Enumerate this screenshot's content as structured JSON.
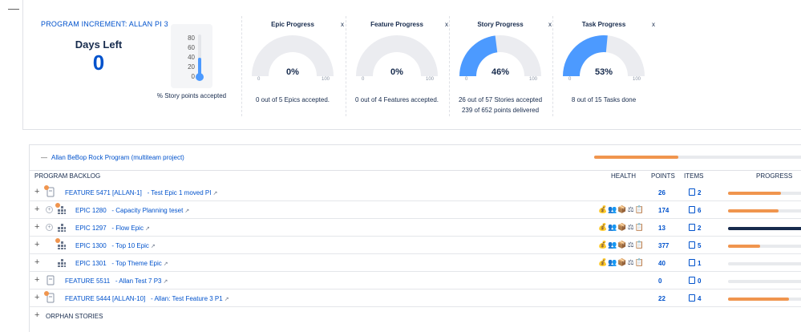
{
  "top": {
    "collapse_symbol": "—",
    "pi_title": "PROGRAM INCREMENT: ALLAN PI 3",
    "days_left_label": "Days Left",
    "days_left_value": "0",
    "thermometer": {
      "ticks": [
        "80",
        "60",
        "40",
        "20",
        "0"
      ],
      "value_fraction": 0.46,
      "caption": "% Story points accepted"
    },
    "gauges": [
      {
        "title": "Epic Progress",
        "close": "x",
        "percent_label": "0%",
        "value": 0,
        "min": "0",
        "max": "100",
        "caption1": "0 out of 5 Epics accepted.",
        "caption2": ""
      },
      {
        "title": "Feature Progress",
        "close": "x",
        "percent_label": "0%",
        "value": 0,
        "min": "0",
        "max": "100",
        "caption1": "0 out of 4 Features accepted.",
        "caption2": ""
      },
      {
        "title": "Story Progress",
        "close": "x",
        "percent_label": "46%",
        "value": 46,
        "min": "0",
        "max": "100",
        "caption1": "26 out of 57 Stories accepted",
        "caption2": "239 of 652 points delivered"
      },
      {
        "title": "Task Progress",
        "close": "x",
        "percent_label": "53%",
        "value": 53,
        "min": "0",
        "max": "100",
        "caption1": "8 out of 15 Tasks done",
        "caption2": ""
      }
    ]
  },
  "program": {
    "minus": "—",
    "name": "Allan BeBop Rock Program (multiteam project)",
    "progress": 0.39
  },
  "columns": {
    "backlog": "PROGRAM BACKLOG",
    "health": "HEALTH",
    "points": "POINTS",
    "items": "ITEMS",
    "progress": "PROGRESS"
  },
  "rows": [
    {
      "type": "feature",
      "id": "FEATURE 5471 [ALLAN-1]",
      "title": "- Test Epic 1 moved PI",
      "health": "",
      "points": "26",
      "items": "2",
      "progress": 0.65,
      "bar_color": "#f0954e",
      "dot": true,
      "circle_plus": false
    },
    {
      "type": "epic",
      "id": "EPIC 1280",
      "title": "- Capacity Planning teset",
      "health": "💰👥📦⚖📋",
      "points": "174",
      "items": "6",
      "progress": 0.62,
      "bar_color": "#f0954e",
      "dot": true,
      "circle_plus": true
    },
    {
      "type": "epic",
      "id": "EPIC 1297",
      "title": "- Flow Epic",
      "health": "💰👥📦⚖📋",
      "points": "13",
      "items": "2",
      "progress": 1.0,
      "bar_color": "#172b4d",
      "dot": false,
      "circle_plus": true
    },
    {
      "type": "epic",
      "id": "EPIC 1300",
      "title": "- Top 10 Epic",
      "health": "💰👥📦⚖📋",
      "points": "377",
      "items": "5",
      "progress": 0.4,
      "bar_color": "#f0954e",
      "dot": true,
      "circle_plus": false
    },
    {
      "type": "epic",
      "id": "EPIC 1301",
      "title": "- Top Theme Epic",
      "health": "💰👥📦⚖📋",
      "points": "40",
      "items": "1",
      "progress": 0.0,
      "bar_color": "#f0954e",
      "dot": false,
      "circle_plus": false
    },
    {
      "type": "feature",
      "id": "FEATURE 5511",
      "title": "- Allan Test 7 P3",
      "health": "",
      "points": "0",
      "items": "0",
      "progress": 0.0,
      "bar_color": "#f0954e",
      "dot": false,
      "circle_plus": false
    },
    {
      "type": "feature",
      "id": "FEATURE 5444 [ALLAN-10]",
      "title": "- Allan: Test Feature 3 P1",
      "health": "",
      "points": "22",
      "items": "4",
      "progress": 0.75,
      "bar_color": "#f0954e",
      "dot": true,
      "circle_plus": false
    }
  ],
  "orphan": {
    "label": "ORPHAN STORIES"
  },
  "symbols": {
    "plus": "+",
    "circle_plus": "+",
    "external": "↗"
  }
}
